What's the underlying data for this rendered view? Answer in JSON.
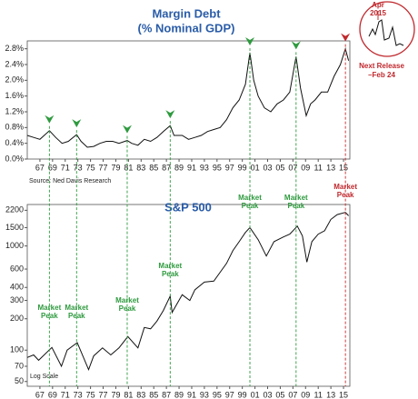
{
  "chart_data": [
    {
      "type": "line",
      "title": "Margin Debt",
      "subtitle": "(% Nominal GDP)",
      "source": "Source: Ned Davis Research",
      "color": "#111111",
      "title_color": "#2a5ca8",
      "x": [
        1965,
        1966,
        1967,
        1968.5,
        1969.5,
        1970.5,
        1971.5,
        1972.8,
        1973.5,
        1974.5,
        1975.5,
        1976.5,
        1977.5,
        1978.5,
        1979.5,
        1980.8,
        1981.5,
        1982.5,
        1983.5,
        1984.5,
        1985.5,
        1986.5,
        1987.6,
        1988.2,
        1989.5,
        1990.5,
        1991.5,
        1992.5,
        1993.5,
        1994.5,
        1995.5,
        1996.5,
        1997.5,
        1998.5,
        1999.5,
        2000.2,
        2000.8,
        2001.5,
        2002.5,
        2003.5,
        2004.5,
        2005.5,
        2006.5,
        2007.5,
        2008.2,
        2009.1,
        2009.8,
        2010.5,
        2011.5,
        2012.5,
        2013.5,
        2014.5,
        2015.3,
        2015.8
      ],
      "values": [
        0.6,
        0.55,
        0.5,
        0.72,
        0.55,
        0.4,
        0.45,
        0.62,
        0.45,
        0.3,
        0.32,
        0.4,
        0.45,
        0.45,
        0.4,
        0.47,
        0.4,
        0.35,
        0.5,
        0.45,
        0.55,
        0.7,
        0.85,
        0.6,
        0.6,
        0.5,
        0.55,
        0.6,
        0.7,
        0.75,
        0.8,
        1.0,
        1.3,
        1.5,
        1.9,
        2.7,
        2.0,
        1.6,
        1.3,
        1.2,
        1.4,
        1.5,
        1.7,
        2.6,
        1.8,
        1.1,
        1.4,
        1.5,
        1.7,
        1.7,
        2.1,
        2.4,
        2.8,
        2.5
      ],
      "xlim": [
        1965,
        2016
      ],
      "xticks": [
        {
          "value": 1967,
          "label": "67"
        },
        {
          "value": 1969,
          "label": "69"
        },
        {
          "value": 1971,
          "label": "71"
        },
        {
          "value": 1973,
          "label": "73"
        },
        {
          "value": 1975,
          "label": "75"
        },
        {
          "value": 1977,
          "label": "77"
        },
        {
          "value": 1979,
          "label": "79"
        },
        {
          "value": 1981,
          "label": "81"
        },
        {
          "value": 1983,
          "label": "83"
        },
        {
          "value": 1985,
          "label": "85"
        },
        {
          "value": 1987,
          "label": "87"
        },
        {
          "value": 1989,
          "label": "89"
        },
        {
          "value": 1991,
          "label": "91"
        },
        {
          "value": 1993,
          "label": "93"
        },
        {
          "value": 1995,
          "label": "95"
        },
        {
          "value": 1997,
          "label": "97"
        },
        {
          "value": 1999,
          "label": "99"
        },
        {
          "value": 2001,
          "label": "01"
        },
        {
          "value": 2003,
          "label": "03"
        },
        {
          "value": 2005,
          "label": "05"
        },
        {
          "value": 2007,
          "label": "07"
        },
        {
          "value": 2009,
          "label": "09"
        },
        {
          "value": 2011,
          "label": "11"
        },
        {
          "value": 2013,
          "label": "13"
        },
        {
          "value": 2015,
          "label": "15"
        }
      ],
      "ylim": [
        0,
        3.0
      ],
      "yticks": [
        {
          "value": 0,
          "label": "0.0%"
        },
        {
          "value": 0.4,
          "label": "0.4%"
        },
        {
          "value": 0.8,
          "label": "0.8%"
        },
        {
          "value": 1.2,
          "label": "1.2%"
        },
        {
          "value": 1.6,
          "label": "1.6%"
        },
        {
          "value": 2.0,
          "label": "2.0%"
        },
        {
          "value": 2.4,
          "label": "2.4%"
        },
        {
          "value": 2.8,
          "label": "2.8%"
        }
      ],
      "peaks": [
        1968.5,
        1972.8,
        1980.8,
        1987.6,
        2000.2,
        2007.5,
        2015.3
      ],
      "peak_color": "#2e9a3e",
      "last_peak_color": "#c0282d",
      "inset": {
        "label_lines": [
          "Apr",
          "2015"
        ],
        "release_lines": [
          "Next Release",
          "–Feb 24"
        ]
      }
    },
    {
      "type": "line",
      "title": "S&P 500",
      "note": "Log Scale",
      "log_scale": true,
      "color": "#111111",
      "title_color": "#2a5ca8",
      "x": [
        1965,
        1966,
        1966.8,
        1968.9,
        1970.4,
        1971.3,
        1972.9,
        1974.7,
        1975.5,
        1976.9,
        1978.2,
        1979.5,
        1980.9,
        1982.5,
        1983.5,
        1984.5,
        1985.5,
        1986.5,
        1987.6,
        1987.9,
        1989.5,
        1990.7,
        1991.5,
        1993,
        1994.5,
        1995.5,
        1996.5,
        1997.5,
        1998.5,
        1999.5,
        2000.2,
        2001.5,
        2002.8,
        2004,
        2005.5,
        2006.5,
        2007.7,
        2008.5,
        2009.2,
        2010,
        2011,
        2012,
        2013,
        2014,
        2015.3,
        2015.8
      ],
      "values": [
        85,
        90,
        80,
        106,
        70,
        100,
        118,
        65,
        88,
        105,
        90,
        105,
        135,
        105,
        165,
        160,
        190,
        240,
        330,
        230,
        340,
        300,
        380,
        450,
        460,
        560,
        680,
        900,
        1100,
        1350,
        1500,
        1150,
        800,
        1100,
        1220,
        1300,
        1550,
        1250,
        700,
        1100,
        1300,
        1400,
        1800,
        2000,
        2100,
        1950
      ],
      "xlim": [
        1965,
        2016
      ],
      "xticks": [
        {
          "value": 1967,
          "label": "67"
        },
        {
          "value": 1969,
          "label": "69"
        },
        {
          "value": 1971,
          "label": "71"
        },
        {
          "value": 1973,
          "label": "73"
        },
        {
          "value": 1975,
          "label": "75"
        },
        {
          "value": 1977,
          "label": "77"
        },
        {
          "value": 1979,
          "label": "79"
        },
        {
          "value": 1981,
          "label": "81"
        },
        {
          "value": 1983,
          "label": "83"
        },
        {
          "value": 1985,
          "label": "85"
        },
        {
          "value": 1987,
          "label": "87"
        },
        {
          "value": 1989,
          "label": "89"
        },
        {
          "value": 1991,
          "label": "91"
        },
        {
          "value": 1993,
          "label": "93"
        },
        {
          "value": 1995,
          "label": "95"
        },
        {
          "value": 1997,
          "label": "97"
        },
        {
          "value": 1999,
          "label": "99"
        },
        {
          "value": 2001,
          "label": "01"
        },
        {
          "value": 2003,
          "label": "03"
        },
        {
          "value": 2005,
          "label": "05"
        },
        {
          "value": 2007,
          "label": "07"
        },
        {
          "value": 2009,
          "label": "09"
        },
        {
          "value": 2011,
          "label": "11"
        },
        {
          "value": 2013,
          "label": "13"
        },
        {
          "value": 2015,
          "label": "15"
        }
      ],
      "ylim": [
        45,
        2500
      ],
      "yticks": [
        50,
        70,
        100,
        200,
        300,
        400,
        600,
        1000,
        1500,
        2200
      ],
      "annotations": [
        {
          "x": 1968.5,
          "lines": [
            "Market",
            "Peak"
          ]
        },
        {
          "x": 1972.8,
          "lines": [
            "Market",
            "Peak"
          ]
        },
        {
          "x": 1980.8,
          "lines": [
            "Market",
            "Peak"
          ]
        },
        {
          "x": 1987.6,
          "lines": [
            "Market",
            "Peak"
          ]
        },
        {
          "x": 2000.2,
          "lines": [
            "Market",
            "Peak"
          ]
        },
        {
          "x": 2007.5,
          "lines": [
            "Market",
            "Peak"
          ]
        },
        {
          "x": 2015.3,
          "lines": [
            "Market",
            "Peak"
          ]
        }
      ]
    }
  ]
}
